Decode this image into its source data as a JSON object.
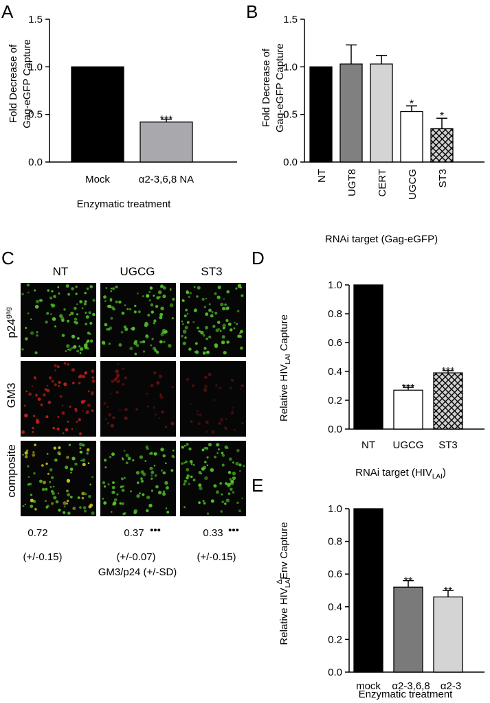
{
  "chart_data": [
    {
      "panel": "A",
      "type": "bar",
      "ylabel": "Fold Decrease of Gag-eGFP Capture",
      "xlabel": "Enzymatic treatment",
      "ylim": [
        0,
        1.5
      ],
      "yticks": [
        "0.0",
        "0.5",
        "1.0",
        "1.5"
      ],
      "categories": [
        "Mock",
        "α2-3,6,8 NA"
      ],
      "values": [
        1.0,
        0.42
      ],
      "errors": [
        0,
        0.03
      ],
      "significance": [
        "",
        "***"
      ],
      "fills": [
        "#000000",
        "#a9a9ad"
      ]
    },
    {
      "panel": "B",
      "type": "bar",
      "ylabel": "Fold Decrease of Gag-eGFP Capture",
      "xlabel": "RNAi target   (Gag-eGFP)",
      "ylim": [
        0,
        1.5
      ],
      "yticks": [
        "0.0",
        "0.5",
        "1.0",
        "1.5"
      ],
      "categories": [
        "NT",
        "UGT8",
        "CERT",
        "UGCG",
        "ST3"
      ],
      "values": [
        1.0,
        1.03,
        1.03,
        0.53,
        0.35
      ],
      "errors": [
        0,
        0.2,
        0.09,
        0.06,
        0.11
      ],
      "significance": [
        "",
        "",
        "",
        "*",
        "*"
      ],
      "fills": [
        "#000000",
        "#808080",
        "#d4d4d4",
        "#ffffff",
        "crosshatch"
      ]
    },
    {
      "panel": "D",
      "type": "bar",
      "ylabel": "Relative HIV_LAI Capture",
      "ylabel_main": "Relative HIV",
      "ylabel_sub": "LAI",
      "ylabel_tail": " Capture",
      "xlabel": "RNAi target (HIV_LAI)",
      "xlabel_main": "RNAi target (HIV",
      "xlabel_sub": "LAI",
      "xlabel_tail": ")",
      "ylim": [
        0,
        1.0
      ],
      "yticks": [
        "0.0",
        "0.2",
        "0.4",
        "0.6",
        "0.8",
        "1.0"
      ],
      "categories": [
        "NT",
        "UGCG",
        "ST3"
      ],
      "values": [
        1.0,
        0.27,
        0.39
      ],
      "errors": [
        0,
        0.02,
        0.015
      ],
      "significance": [
        "",
        "***",
        "***"
      ],
      "fills": [
        "#000000",
        "#ffffff",
        "crosshatch"
      ]
    },
    {
      "panel": "E",
      "type": "bar",
      "ylabel": "Relative HIV_LAI ΔEnv Capture",
      "ylabel_main": "Relative HIV",
      "ylabel_sub": "LAI",
      "ylabel_sup": "Δ",
      "ylabel_tail": "Env Capture",
      "xlabel": "Enzymatic treatment",
      "ylim": [
        0,
        1.0
      ],
      "yticks": [
        "0.0",
        "0.2",
        "0.4",
        "0.6",
        "0.8",
        "1.0"
      ],
      "categories": [
        "mock",
        "α2-3,6,8",
        "α2-3"
      ],
      "values": [
        1.0,
        0.52,
        0.46
      ],
      "errors": [
        0,
        0.04,
        0.04
      ],
      "significance": [
        "",
        "**",
        "**"
      ],
      "fills": [
        "#000000",
        "#7a7a7a",
        "#d4d4d4"
      ]
    }
  ],
  "panel_c": {
    "letter": "C",
    "columns": [
      "NT",
      "UGCG",
      "ST3"
    ],
    "rows": [
      "p24gag",
      "GM3",
      "composite"
    ],
    "row_label_p24_main": "p24",
    "row_label_p24_sup": "gag",
    "row_label_gm3": "GM3",
    "row_label_composite": "composite",
    "ratios": [
      "0.72",
      "0.37",
      "0.33"
    ],
    "ratio_marks": [
      "",
      "•••",
      "•••"
    ],
    "sds": [
      "(+/-0.15)",
      "(+/-0.07)",
      "(+/-0.15)"
    ],
    "caption": "GM3/p24 (+/-SD)",
    "colors": {
      "green": "#52c22a",
      "red": "#d6221c",
      "yellow": "#c8c21a",
      "background": "#060606"
    }
  },
  "letters": {
    "a": "A",
    "b": "B",
    "d": "D",
    "e": "E"
  }
}
